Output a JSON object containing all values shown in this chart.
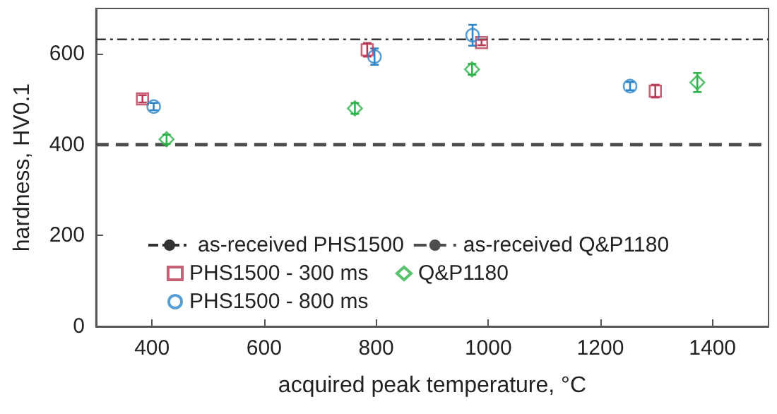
{
  "chart_data": {
    "type": "scatter",
    "xlabel": "acquired peak temperature, °C",
    "ylabel": "hardness, HV0.1",
    "xlim": [
      300,
      1500
    ],
    "xticks": [
      400,
      600,
      800,
      1000,
      1200,
      1400
    ],
    "ylim": [
      0,
      700
    ],
    "yticks": [
      0,
      200,
      400,
      600
    ],
    "grid": false,
    "legend": "bottom",
    "ref_lines": [
      {
        "axis": "y",
        "value": 632,
        "label": "as-received PHS1500",
        "color": "#333333",
        "line_style": "dashdot"
      },
      {
        "axis": "y",
        "value": 400,
        "label": "as-received Q&P1180",
        "color": "#4d4d4d",
        "line_style": "dashed"
      }
    ],
    "series": [
      {
        "name": "PHS1500 - 300 ms",
        "color": "#b83a55",
        "marker": "square",
        "x": [
          383,
          784,
          988,
          1298
        ],
        "values": [
          501,
          609,
          625,
          518
        ],
        "errors": [
          8,
          15,
          6,
          14
        ]
      },
      {
        "name": "PHS1500 - 800 ms",
        "color": "#2f86c8",
        "marker": "circle",
        "x": [
          403,
          797,
          972,
          1253
        ],
        "values": [
          484,
          594,
          641,
          529
        ],
        "errors": [
          8,
          18,
          23,
          9
        ]
      },
      {
        "name": "Q&P1180",
        "color": "#2eb24a",
        "marker": "diamond",
        "x": [
          426,
          762,
          971,
          1373
        ],
        "values": [
          412,
          480,
          566,
          537
        ],
        "errors": [
          10,
          12,
          12,
          21
        ]
      }
    ]
  }
}
